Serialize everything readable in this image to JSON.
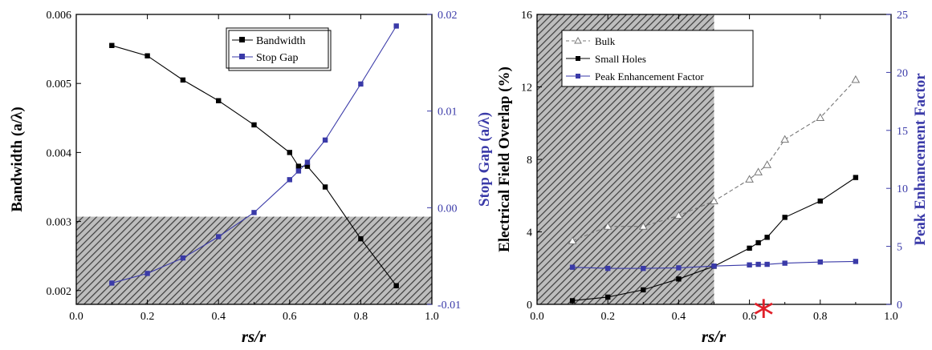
{
  "colors": {
    "black": "#000000",
    "blue": "#3a3aa8",
    "gray": "#777777",
    "red": "#e0202a"
  },
  "chart_data": [
    {
      "type": "line",
      "x_label": "rs/r",
      "y_label": "Bandwidth (a/λ)",
      "y2_label": "Stop Gap (a/λ)",
      "xlim": [
        0.0,
        1.0
      ],
      "ylim": [
        0.0018,
        0.006
      ],
      "y2lim": [
        -0.01,
        0.02
      ],
      "x_ticks": [
        "0.0",
        "0.2",
        "0.4",
        "0.6",
        "0.8",
        "1.0"
      ],
      "y_ticks": [
        "0.002",
        "0.003",
        "0.004",
        "0.005",
        "0.006"
      ],
      "y2_ticks": [
        "-0.01",
        "0.00",
        "0.01",
        "0.02"
      ],
      "hatched_region": {
        "y_max": 0.00307
      },
      "legend_placement": "top-center",
      "series": [
        {
          "name": "Bandwidth",
          "axis": "left",
          "marker": "filled-square",
          "color": "#000000",
          "x": [
            0.1,
            0.2,
            0.3,
            0.4,
            0.5,
            0.6,
            0.625,
            0.65,
            0.7,
            0.8,
            0.9
          ],
          "y": [
            0.00555,
            0.0054,
            0.00505,
            0.00475,
            0.0044,
            0.004,
            0.0038,
            0.0038,
            0.0035,
            0.00275,
            0.00207
          ]
        },
        {
          "name": "Stop Gap",
          "axis": "right",
          "marker": "filled-square",
          "color": "#3a3aa8",
          "x": [
            0.1,
            0.2,
            0.3,
            0.4,
            0.5,
            0.6,
            0.625,
            0.65,
            0.7,
            0.8,
            0.9
          ],
          "y": [
            -0.0078,
            -0.0068,
            -0.0052,
            -0.003,
            -0.0005,
            0.0029,
            0.0038,
            0.0047,
            0.007,
            0.0128,
            0.0188
          ]
        }
      ]
    },
    {
      "type": "line",
      "x_label": "rs/r",
      "y_label": "Electrical Field Overlap (%)",
      "y2_label": "Peak Enhancement Factor",
      "xlim": [
        0.0,
        1.0
      ],
      "ylim": [
        0,
        16
      ],
      "y2lim": [
        0,
        25
      ],
      "x_ticks": [
        "0.0",
        "0.2",
        "0.4",
        "0.6",
        "0.8",
        "1.0"
      ],
      "y_ticks": [
        "0",
        "4",
        "8",
        "12",
        "16"
      ],
      "y2_ticks": [
        "0",
        "5",
        "10",
        "15",
        "20",
        "25"
      ],
      "hatched_region": {
        "x_max": 0.5
      },
      "legend_placement": "top-left",
      "marker_annotation": {
        "symbol": "*",
        "x": 0.64,
        "color": "#e0202a"
      },
      "series": [
        {
          "name": "Bulk",
          "axis": "left",
          "marker": "open-triangle",
          "line": "dashed",
          "color": "#777777",
          "x": [
            0.1,
            0.2,
            0.3,
            0.4,
            0.5,
            0.6,
            0.625,
            0.65,
            0.7,
            0.8,
            0.9
          ],
          "y": [
            3.5,
            4.3,
            4.3,
            4.9,
            5.7,
            6.9,
            7.3,
            7.7,
            9.1,
            10.3,
            12.4
          ]
        },
        {
          "name": "Small Holes",
          "axis": "left",
          "marker": "filled-square",
          "line": "solid",
          "color": "#000000",
          "x": [
            0.1,
            0.2,
            0.3,
            0.4,
            0.5,
            0.6,
            0.625,
            0.65,
            0.7,
            0.8,
            0.9
          ],
          "y": [
            0.2,
            0.4,
            0.8,
            1.4,
            2.1,
            3.1,
            3.4,
            3.7,
            4.8,
            5.7,
            7.0
          ]
        },
        {
          "name": "Peak Enhancement Factor",
          "axis": "right",
          "marker": "filled-square",
          "line": "solid",
          "color": "#3a3aa8",
          "x": [
            0.1,
            0.2,
            0.3,
            0.4,
            0.5,
            0.6,
            0.625,
            0.65,
            0.7,
            0.8,
            0.9
          ],
          "y": [
            3.2,
            3.1,
            3.1,
            3.15,
            3.3,
            3.4,
            3.45,
            3.45,
            3.55,
            3.65,
            3.7
          ]
        }
      ]
    }
  ]
}
